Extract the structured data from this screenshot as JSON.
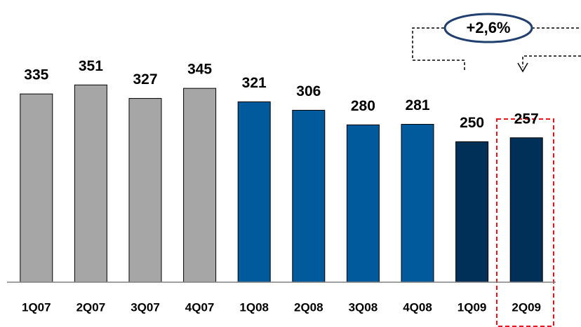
{
  "chart_data": {
    "type": "bar",
    "categories": [
      "1Q07",
      "2Q07",
      "3Q07",
      "4Q07",
      "1Q08",
      "2Q08",
      "3Q08",
      "4Q08",
      "1Q09",
      "2Q09"
    ],
    "values": [
      335,
      351,
      327,
      345,
      321,
      306,
      280,
      281,
      250,
      257
    ],
    "colors": [
      "#a6a6a6",
      "#a6a6a6",
      "#a6a6a6",
      "#a6a6a6",
      "#005a9c",
      "#005a9c",
      "#005a9c",
      "#005a9c",
      "#003057",
      "#003057"
    ],
    "ylim": [
      0,
      400
    ],
    "annotation": "+2,6%"
  }
}
